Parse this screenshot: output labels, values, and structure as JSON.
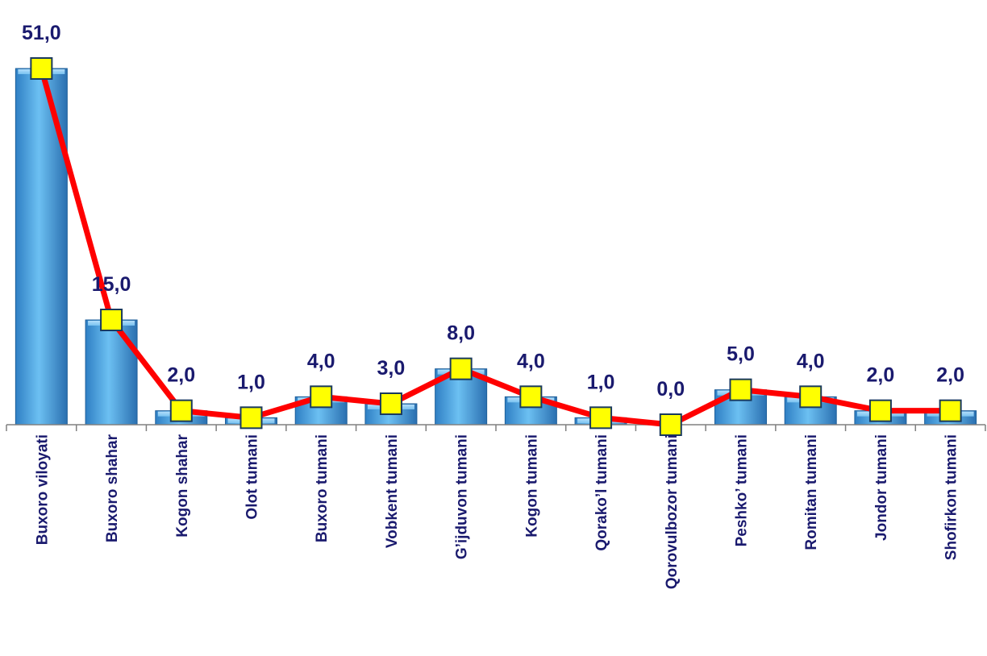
{
  "chart_data": {
    "type": "bar",
    "categories": [
      "Buxoro viloyati",
      "Buxoro shahar",
      "Kogon shahar",
      "Olot tumani",
      "Buxoro tumani",
      "Vobkent tumani",
      "G'ijduvon tumani",
      "Kogon tumani",
      "Qorako'l tumani",
      "Qorovulbozor tumani",
      "Peshko' tumani",
      "Romitan tumani",
      "Jondor tumani",
      "Shofirkon tumani"
    ],
    "category_labels": [
      "Buxoro viloyati",
      "Buxoro shahar",
      "Kogon shahar",
      "Olot tumani",
      "Buxoro tumani",
      "Vobkent tumani",
      "G’ijduvon tumani",
      "Kogon tumani",
      "Qorako’l tumani",
      "Qorovulbozor tumani",
      "Peshko’ tumani",
      "Romitan tumani",
      "Jondor tumani",
      "Shofirkon tumani"
    ],
    "values": [
      51.0,
      15.0,
      2.0,
      1.0,
      4.0,
      3.0,
      8.0,
      4.0,
      1.0,
      0.0,
      5.0,
      4.0,
      2.0,
      2.0
    ],
    "value_labels": [
      "51,0",
      "15,0",
      "2,0",
      "1,0",
      "4,0",
      "3,0",
      "8,0",
      "4,0",
      "1,0",
      "0,0",
      "5,0",
      "4,0",
      "2,0",
      "2,0"
    ],
    "overlay": "line-with-square-markers",
    "ylim": [
      0,
      51
    ],
    "grid": false,
    "legend": "none",
    "colors": {
      "bar": "#5aaee8",
      "line": "#ff0000",
      "marker_fill": "#ffff00",
      "marker_stroke": "#1a3a5c",
      "text": "#1a1a6e",
      "axis": "#808080"
    }
  }
}
